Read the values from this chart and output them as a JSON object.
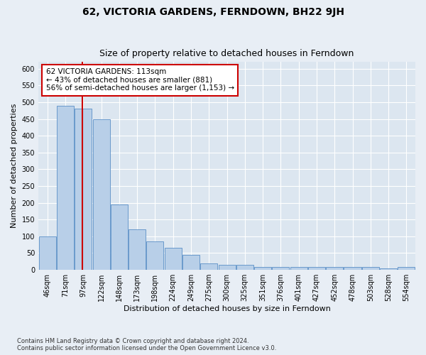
{
  "title": "62, VICTORIA GARDENS, FERNDOWN, BH22 9JH",
  "subtitle": "Size of property relative to detached houses in Ferndown",
  "xlabel": "Distribution of detached houses by size in Ferndown",
  "ylabel": "Number of detached properties",
  "categories": [
    "46sqm",
    "71sqm",
    "97sqm",
    "122sqm",
    "148sqm",
    "173sqm",
    "198sqm",
    "224sqm",
    "249sqm",
    "275sqm",
    "300sqm",
    "325sqm",
    "351sqm",
    "376sqm",
    "401sqm",
    "427sqm",
    "452sqm",
    "478sqm",
    "503sqm",
    "528sqm",
    "554sqm"
  ],
  "values": [
    100,
    490,
    480,
    450,
    195,
    120,
    85,
    65,
    45,
    20,
    15,
    15,
    8,
    8,
    8,
    8,
    8,
    8,
    8,
    5,
    8
  ],
  "bar_color": "#b8cfe8",
  "bar_edge_color": "#5b8fc7",
  "vline_x": 1.95,
  "vline_color": "#cc0000",
  "annotation_text": "62 VICTORIA GARDENS: 113sqm\n← 43% of detached houses are smaller (881)\n56% of semi-detached houses are larger (1,153) →",
  "annotation_box_facecolor": "#ffffff",
  "annotation_box_edgecolor": "#cc0000",
  "ylim": [
    0,
    620
  ],
  "yticks": [
    0,
    50,
    100,
    150,
    200,
    250,
    300,
    350,
    400,
    450,
    500,
    550,
    600
  ],
  "bg_color": "#e8eef5",
  "plot_bg_color": "#dce6f0",
  "grid_color": "#ffffff",
  "footer": "Contains HM Land Registry data © Crown copyright and database right 2024.\nContains public sector information licensed under the Open Government Licence v3.0.",
  "title_fontsize": 10,
  "subtitle_fontsize": 9,
  "tick_fontsize": 7,
  "ylabel_fontsize": 8,
  "xlabel_fontsize": 8,
  "annotation_fontsize": 7.5
}
